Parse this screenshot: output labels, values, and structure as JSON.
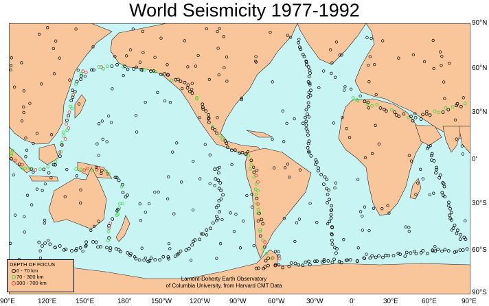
{
  "title": "World Seismicity 1977-1992",
  "lat_labels": [
    "90°N",
    "60°N",
    "30°N",
    "0'",
    "30°S",
    "60°S",
    "90°S"
  ],
  "lon_labels": [
    "90°E",
    "120°E",
    "150°E",
    "180°",
    "150°W",
    "120°W",
    "90°W",
    "60°W",
    "30°W",
    "0'",
    "30°E",
    "60°E",
    "90°E"
  ],
  "legend": {
    "header": "DEPTH OF FOCUS",
    "items": [
      {
        "label": "0 - 70 km",
        "color": "#000000"
      },
      {
        "label": "70 - 300 km",
        "color": "#33dd33"
      },
      {
        "label": "300 - 700 km",
        "color": "#e23b3b"
      }
    ]
  },
  "credit": {
    "line1": "Lamont-Doherty Earth Observatory",
    "line2": "of Columbia University, from Harvard CMT Data"
  },
  "colors": {
    "ocean": "#c8f4f4",
    "land": "#f8c69a"
  }
}
